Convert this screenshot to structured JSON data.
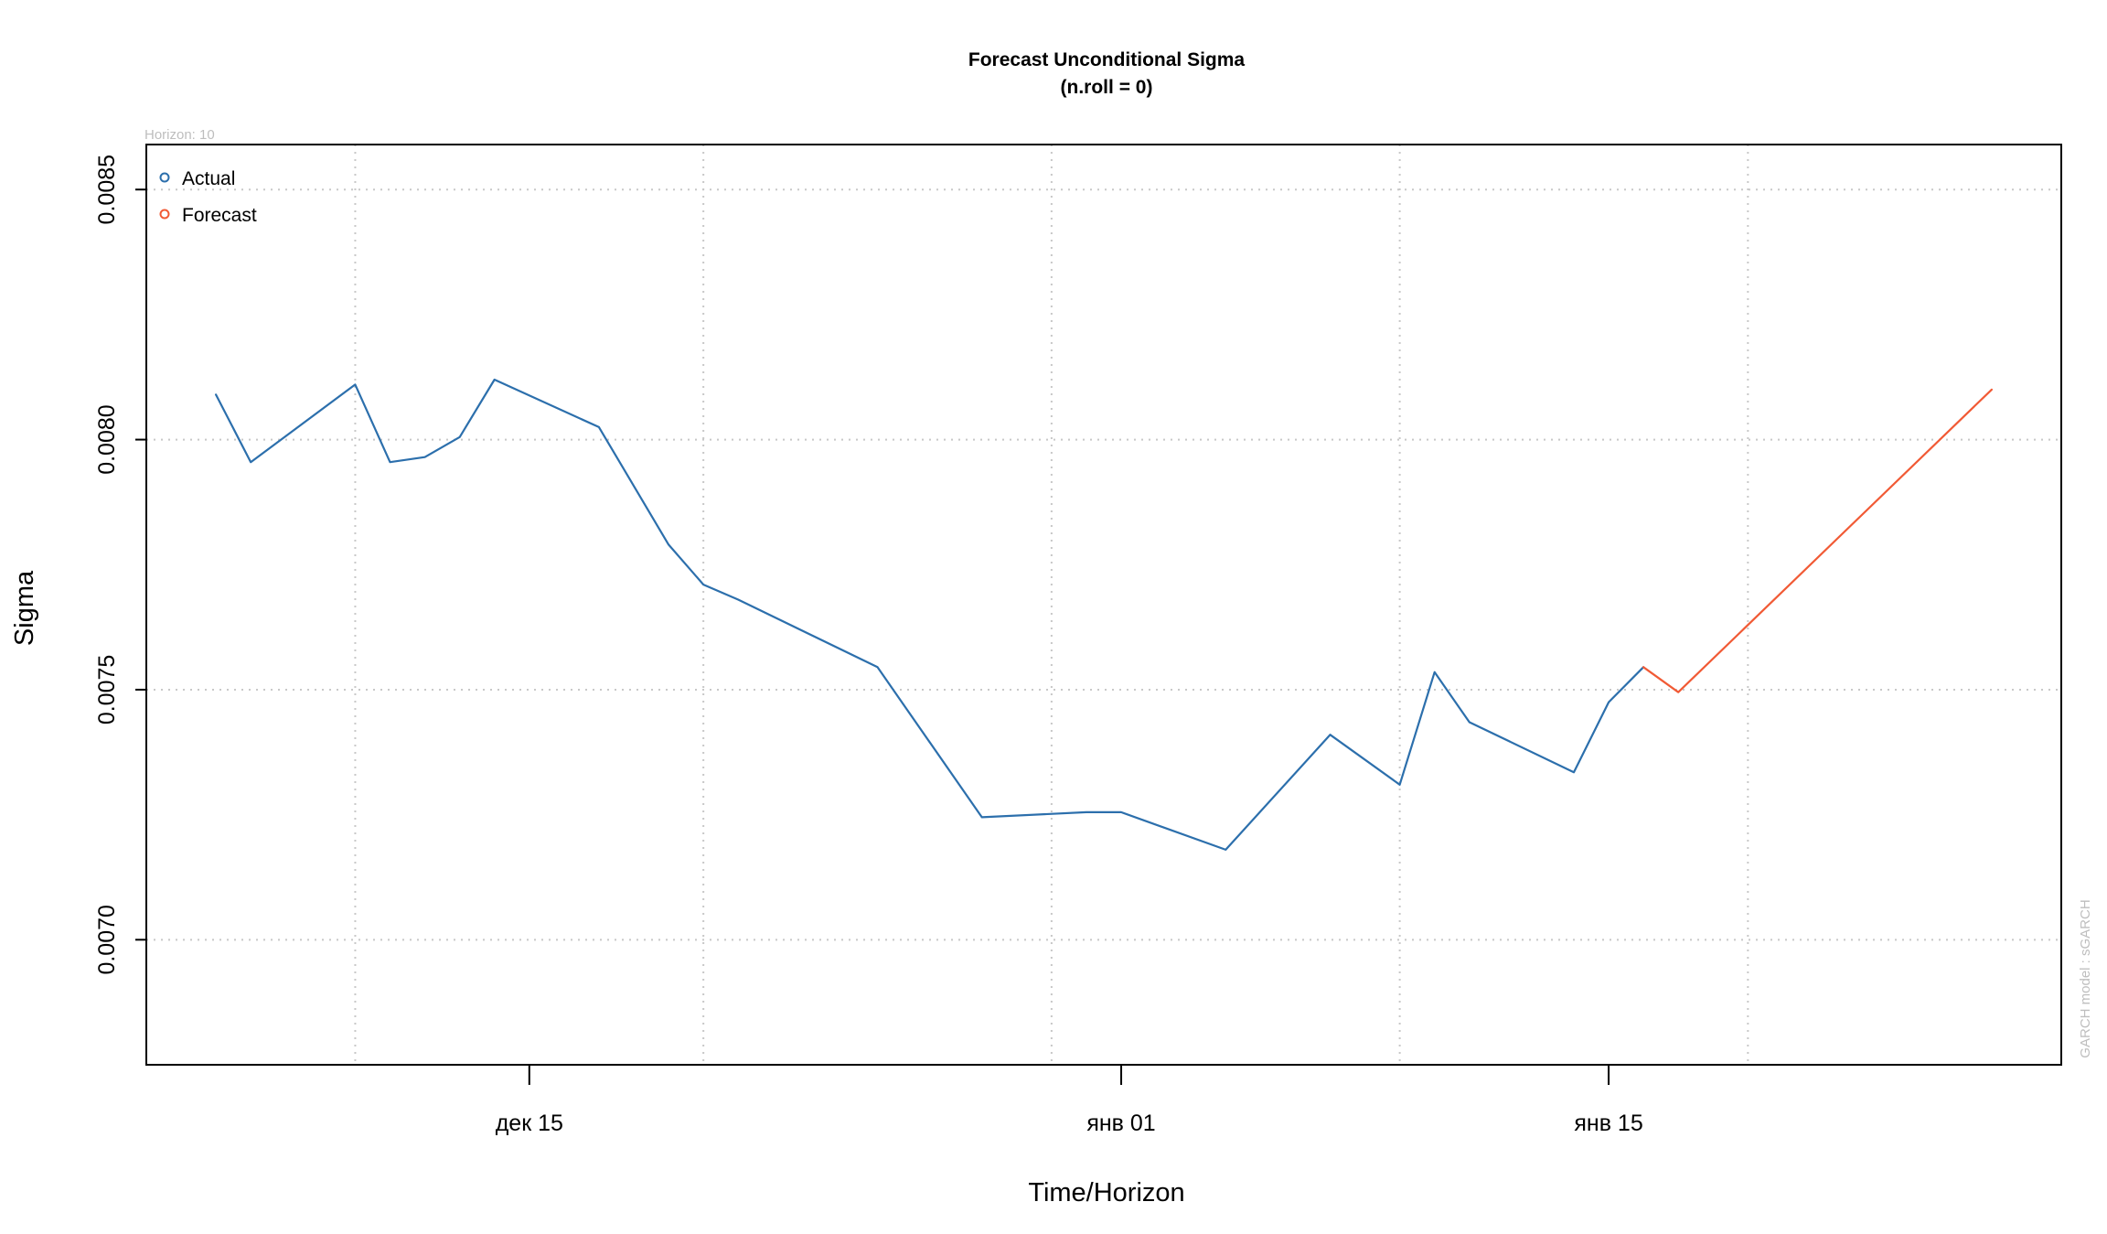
{
  "chart_data": {
    "type": "line",
    "title": "Forecast Unconditional Sigma",
    "subtitle": "(n.roll = 0)",
    "horizon_label": "Horizon: 10",
    "model_label": "GARCH model : sGARCH",
    "xlabel": "Time/Horizon",
    "ylabel": "Sigma",
    "ylim": [
      0.00675,
      0.00859
    ],
    "xlim": [
      "2019-12-04",
      "2020-01-28"
    ],
    "y_ticks": [
      0.007,
      0.0075,
      0.008,
      0.0085
    ],
    "y_tick_labels": [
      "0.0070",
      "0.0075",
      "0.0080",
      "0.0085"
    ],
    "x_ticks": [
      {
        "date": "2019-12-15",
        "label": "дек 15"
      },
      {
        "date": "2020-01-01",
        "label": "янв 01"
      },
      {
        "date": "2020-01-15",
        "label": "янв 15"
      }
    ],
    "x_grid": [
      "2019-12-10",
      "2019-12-20",
      "2019-12-30",
      "2020-01-09",
      "2020-01-19"
    ],
    "grid": true,
    "legend_position": "top-left",
    "colors": {
      "actual": "#2C6FAC",
      "forecast": "#F15A35",
      "grid": "#C8C8C8",
      "axis": "#000000",
      "note": "#BEBEBE"
    },
    "series": [
      {
        "name": "Actual",
        "x": [
          "2019-12-06",
          "2019-12-07",
          "2019-12-10",
          "2019-12-11",
          "2019-12-12",
          "2019-12-13",
          "2019-12-14",
          "2019-12-17",
          "2019-12-19",
          "2019-12-20",
          "2019-12-21",
          "2019-12-25",
          "2019-12-28",
          "2019-12-31",
          "2020-01-01",
          "2020-01-04",
          "2020-01-07",
          "2020-01-09",
          "2020-01-10",
          "2020-01-11",
          "2020-01-14",
          "2020-01-15",
          "2020-01-16"
        ],
        "y": [
          0.00809,
          0.007955,
          0.00811,
          0.007955,
          0.007965,
          0.008005,
          0.00812,
          0.008025,
          0.00779,
          0.00771,
          0.00768,
          0.007545,
          0.007245,
          0.007255,
          0.007255,
          0.00718,
          0.00741,
          0.00731,
          0.007535,
          0.007435,
          0.007335,
          0.007475,
          0.007545
        ]
      },
      {
        "name": "Forecast",
        "x": [
          "2020-01-16",
          "2020-01-17",
          "2020-01-26"
        ],
        "y": [
          0.007545,
          0.007495,
          0.0081
        ]
      }
    ]
  }
}
